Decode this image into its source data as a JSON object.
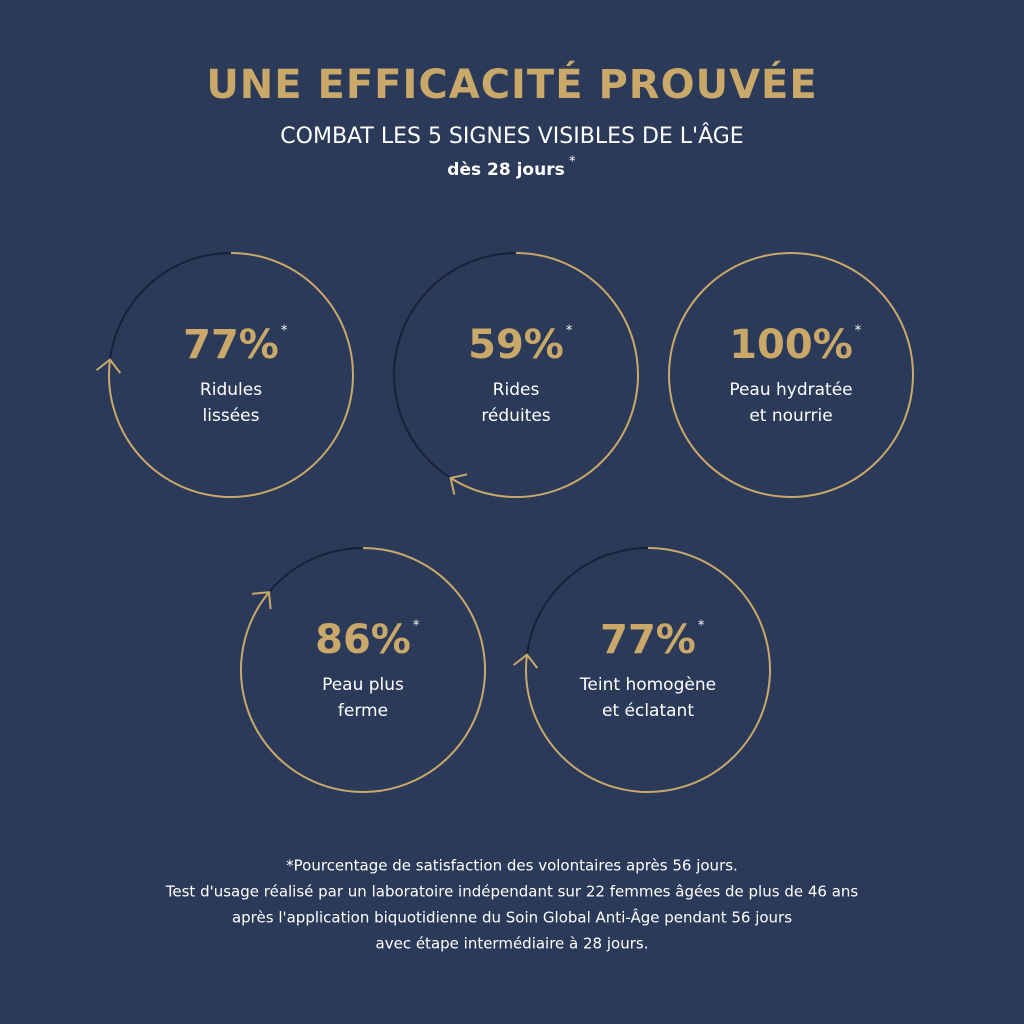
{
  "header": {
    "title": "UNE EFFICACITÉ PROUVÉE",
    "subtitle": "COMBAT LES 5 SIGNES VISIBLES DE L'ÂGE",
    "date_note": "dès 28 jours",
    "date_mark": "*"
  },
  "stats": [
    {
      "value": 77,
      "value_label": "77%",
      "mark": "*",
      "label_lines": [
        "Ridules",
        "lissées"
      ]
    },
    {
      "value": 59,
      "value_label": "59%",
      "mark": "*",
      "label_lines": [
        "Rides",
        "réduites"
      ]
    },
    {
      "value": 100,
      "value_label": "100%",
      "mark": "*",
      "label_lines": [
        "Peau hydratée",
        "et nourrie"
      ]
    },
    {
      "value": 86,
      "value_label": "86%",
      "mark": "*",
      "label_lines": [
        "Peau plus",
        "ferme"
      ]
    },
    {
      "value": 77,
      "value_label": "77%",
      "mark": "*",
      "label_lines": [
        "Teint homogène",
        "et éclatant"
      ]
    }
  ],
  "footnote": [
    "*Pourcentage de satisfaction des volontaires après 56 jours.",
    "Test d'usage réalisé par un laboratoire indépendant sur 22 femmes âgées de plus de 46 ans",
    "après l'application biquotidienne du Soin Global Anti-Âge pendant 56 jours",
    "avec étape intermédiaire à 28 jours."
  ]
}
